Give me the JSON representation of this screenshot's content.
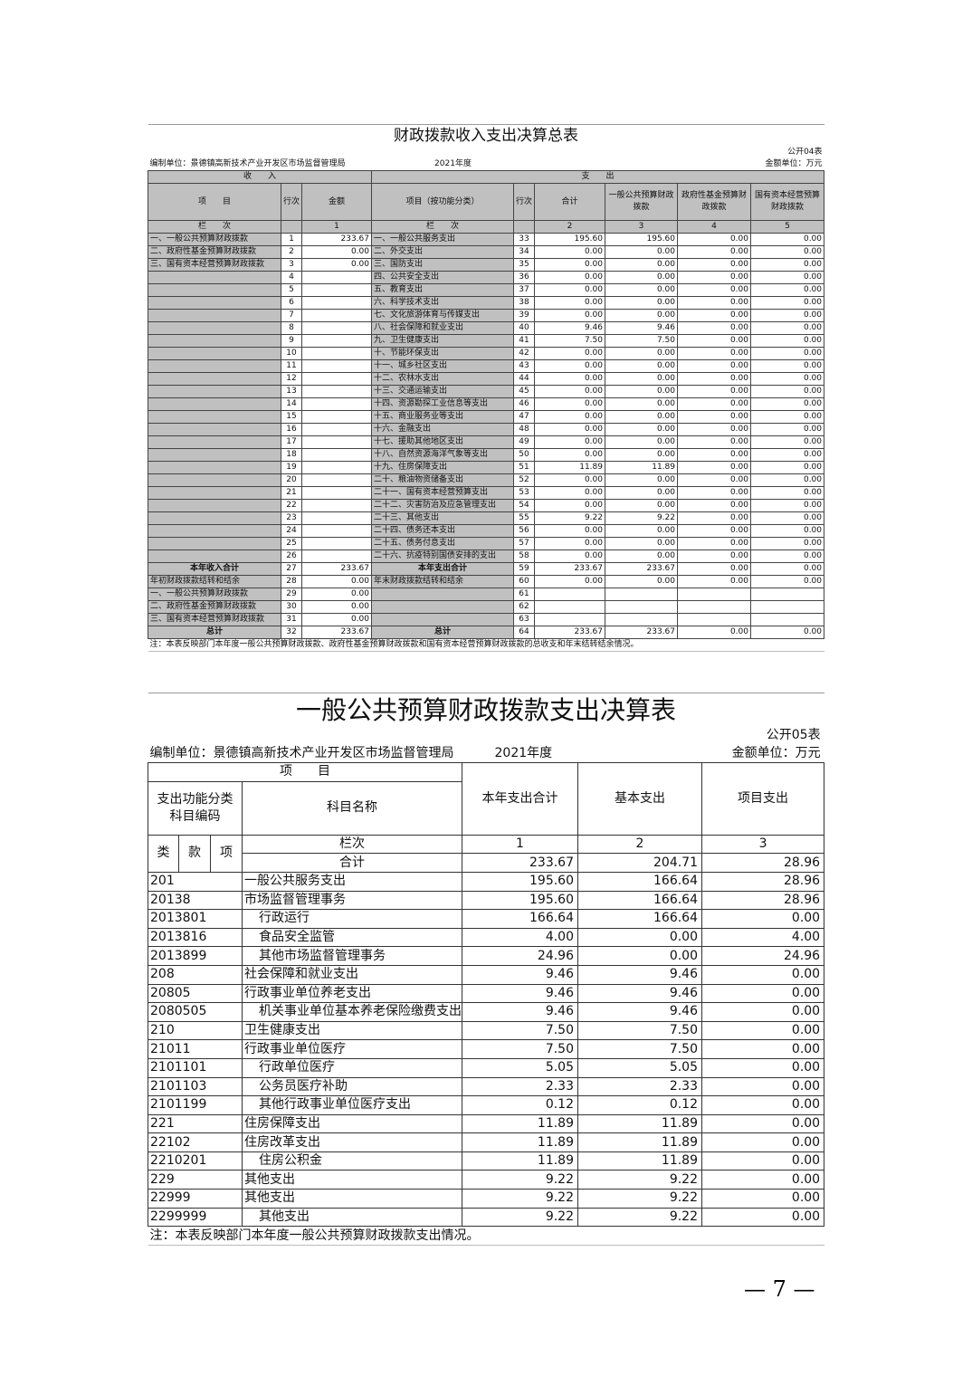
{
  "table1": {
    "title": "财政拨款收入支出决算总表",
    "form_no": "公开04表",
    "unit_org": "编制单位：景德镇高新技术产业开发区市场监督管理局",
    "year": "2021年度",
    "money_unit": "金额单位：万元",
    "income_label": "收　　入",
    "expense_label": "支　　出",
    "headers": [
      "项　　目",
      "行次",
      "金额",
      "项目（按功能分类）",
      "行次",
      "合计",
      "一般公共预算财政拨款",
      "政府性基金预算财政拨款",
      "国有资本经营预算财政拨款"
    ],
    "col_row": [
      "栏　　次",
      "",
      "1",
      "栏　　次",
      "",
      "2",
      "3",
      "4",
      "5"
    ],
    "rows": [
      [
        "一、一般公共预算财政拨款",
        "1",
        "233.67",
        "一、一般公共服务支出",
        "33",
        "195.60",
        "195.60",
        "0.00",
        "0.00"
      ],
      [
        "二、政府性基金预算财政拨款",
        "2",
        "0.00",
        "二、外交支出",
        "34",
        "0.00",
        "0.00",
        "0.00",
        "0.00"
      ],
      [
        "三、国有资本经营预算财政拨款",
        "3",
        "0.00",
        "三、国防支出",
        "35",
        "0.00",
        "0.00",
        "0.00",
        "0.00"
      ],
      [
        "",
        "4",
        "",
        "四、公共安全支出",
        "36",
        "0.00",
        "0.00",
        "0.00",
        "0.00"
      ],
      [
        "",
        "5",
        "",
        "五、教育支出",
        "37",
        "0.00",
        "0.00",
        "0.00",
        "0.00"
      ],
      [
        "",
        "6",
        "",
        "六、科学技术支出",
        "38",
        "0.00",
        "0.00",
        "0.00",
        "0.00"
      ],
      [
        "",
        "7",
        "",
        "七、文化旅游体育与传媒支出",
        "39",
        "0.00",
        "0.00",
        "0.00",
        "0.00"
      ],
      [
        "",
        "8",
        "",
        "八、社会保障和就业支出",
        "40",
        "9.46",
        "9.46",
        "0.00",
        "0.00"
      ],
      [
        "",
        "9",
        "",
        "九、卫生健康支出",
        "41",
        "7.50",
        "7.50",
        "0.00",
        "0.00"
      ],
      [
        "",
        "10",
        "",
        "十、节能环保支出",
        "42",
        "0.00",
        "0.00",
        "0.00",
        "0.00"
      ],
      [
        "",
        "11",
        "",
        "十一、城乡社区支出",
        "43",
        "0.00",
        "0.00",
        "0.00",
        "0.00"
      ],
      [
        "",
        "12",
        "",
        "十二、农林水支出",
        "44",
        "0.00",
        "0.00",
        "0.00",
        "0.00"
      ],
      [
        "",
        "13",
        "",
        "十三、交通运输支出",
        "45",
        "0.00",
        "0.00",
        "0.00",
        "0.00"
      ],
      [
        "",
        "14",
        "",
        "十四、资源勘探工业信息等支出",
        "46",
        "0.00",
        "0.00",
        "0.00",
        "0.00"
      ],
      [
        "",
        "15",
        "",
        "十五、商业服务业等支出",
        "47",
        "0.00",
        "0.00",
        "0.00",
        "0.00"
      ],
      [
        "",
        "16",
        "",
        "十六、金融支出",
        "48",
        "0.00",
        "0.00",
        "0.00",
        "0.00"
      ],
      [
        "",
        "17",
        "",
        "十七、援助其他地区支出",
        "49",
        "0.00",
        "0.00",
        "0.00",
        "0.00"
      ],
      [
        "",
        "18",
        "",
        "十八、自然资源海洋气象等支出",
        "50",
        "0.00",
        "0.00",
        "0.00",
        "0.00"
      ],
      [
        "",
        "19",
        "",
        "十九、住房保障支出",
        "51",
        "11.89",
        "11.89",
        "0.00",
        "0.00"
      ],
      [
        "",
        "20",
        "",
        "二十、粮油物资储备支出",
        "52",
        "0.00",
        "0.00",
        "0.00",
        "0.00"
      ],
      [
        "",
        "21",
        "",
        "二十一、国有资本经营预算支出",
        "53",
        "0.00",
        "0.00",
        "0.00",
        "0.00"
      ],
      [
        "",
        "22",
        "",
        "二十二、灾害防治及应急管理支出",
        "54",
        "0.00",
        "0.00",
        "0.00",
        "0.00"
      ],
      [
        "",
        "23",
        "",
        "二十三、其他支出",
        "55",
        "9.22",
        "9.22",
        "0.00",
        "0.00"
      ],
      [
        "",
        "24",
        "",
        "二十四、债务还本支出",
        "56",
        "0.00",
        "0.00",
        "0.00",
        "0.00"
      ],
      [
        "",
        "25",
        "",
        "二十五、债务付息支出",
        "57",
        "0.00",
        "0.00",
        "0.00",
        "0.00"
      ],
      [
        "",
        "26",
        "",
        "二十六、抗疫特别国债安排的支出",
        "58",
        "0.00",
        "0.00",
        "0.00",
        "0.00"
      ],
      [
        "本年收入合计",
        "27",
        "233.67",
        "本年支出合计",
        "59",
        "233.67",
        "233.67",
        "0.00",
        "0.00"
      ],
      [
        "年初财政拨款结转和结余",
        "28",
        "0.00",
        "年末财政拨款结转和结余",
        "60",
        "0.00",
        "0.00",
        "0.00",
        "0.00"
      ],
      [
        "一、一般公共预算财政拨款",
        "29",
        "0.00",
        "",
        "61",
        "",
        "",
        "",
        ""
      ],
      [
        "二、政府性基金预算财政拨款",
        "30",
        "0.00",
        "",
        "62",
        "",
        "",
        "",
        ""
      ],
      [
        "三、国有资本经营预算财政拨款",
        "31",
        "0.00",
        "",
        "63",
        "",
        "",
        "",
        ""
      ],
      [
        "总计",
        "32",
        "233.67",
        "总计",
        "64",
        "233.67",
        "233.67",
        "0.00",
        "0.00"
      ]
    ],
    "note": "注：本表反映部门本年度一般公共预算财政拨款、政府性基金预算财政拨款和国有资本经营预算财政拨款的总收支和年末结转结余情况。"
  },
  "table2": {
    "title": "一般公共预算财政拨款支出决算表",
    "form_no": "公开05表",
    "unit_org": "编制单位：景德镇高新技术产业开发区市场监督管理局",
    "year": "2021年度",
    "money_unit": "金额单位：万元",
    "h_item": "项　　目",
    "h_code": "支出功能分类科目编码",
    "h_name": "科目名称",
    "h_total": "本年支出合计",
    "h_basic": "基本支出",
    "h_project": "项目支出",
    "h_lei": "类",
    "h_kuan": "款",
    "h_xiang": "项",
    "h_lanci": "栏次",
    "c1": "1",
    "c2": "2",
    "c3": "3",
    "sum_label": "合计",
    "sum": [
      "233.67",
      "204.71",
      "28.96"
    ],
    "rows": [
      [
        "201",
        "一般公共服务支出",
        "195.60",
        "166.64",
        "28.96",
        0
      ],
      [
        "20138",
        "市场监督管理事务",
        "195.60",
        "166.64",
        "28.96",
        0
      ],
      [
        "2013801",
        "行政运行",
        "166.64",
        "166.64",
        "0.00",
        1
      ],
      [
        "2013816",
        "食品安全监管",
        "4.00",
        "0.00",
        "4.00",
        1
      ],
      [
        "2013899",
        "其他市场监督管理事务",
        "24.96",
        "0.00",
        "24.96",
        1
      ],
      [
        "208",
        "社会保障和就业支出",
        "9.46",
        "9.46",
        "0.00",
        0
      ],
      [
        "20805",
        "行政事业单位养老支出",
        "9.46",
        "9.46",
        "0.00",
        0
      ],
      [
        "2080505",
        "机关事业单位基本养老保险缴费支出",
        "9.46",
        "9.46",
        "0.00",
        1
      ],
      [
        "210",
        "卫生健康支出",
        "7.50",
        "7.50",
        "0.00",
        0
      ],
      [
        "21011",
        "行政事业单位医疗",
        "7.50",
        "7.50",
        "0.00",
        0
      ],
      [
        "2101101",
        "行政单位医疗",
        "5.05",
        "5.05",
        "0.00",
        1
      ],
      [
        "2101103",
        "公务员医疗补助",
        "2.33",
        "2.33",
        "0.00",
        1
      ],
      [
        "2101199",
        "其他行政事业单位医疗支出",
        "0.12",
        "0.12",
        "0.00",
        1
      ],
      [
        "221",
        "住房保障支出",
        "11.89",
        "11.89",
        "0.00",
        0
      ],
      [
        "22102",
        "住房改革支出",
        "11.89",
        "11.89",
        "0.00",
        0
      ],
      [
        "2210201",
        "住房公积金",
        "11.89",
        "11.89",
        "0.00",
        1
      ],
      [
        "229",
        "其他支出",
        "9.22",
        "9.22",
        "0.00",
        0
      ],
      [
        "22999",
        "其他支出",
        "9.22",
        "9.22",
        "0.00",
        0
      ],
      [
        "2299999",
        "其他支出",
        "9.22",
        "9.22",
        "0.00",
        1
      ]
    ],
    "note": "注：本表反映部门本年度一般公共预算财政拨款支出情况。"
  },
  "page_number": "— 7 —"
}
